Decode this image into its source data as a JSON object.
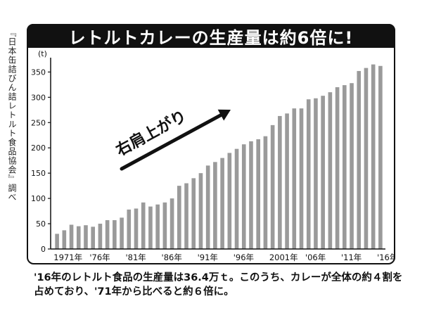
{
  "source_note": "『日本缶詰びん詰レトルト食品協会』調べ",
  "caption": "'16年のレトルト食品の生産量は36.4万ｔ。このうち、カレーが全体の約４割を占めており、'71年から比べると約６倍に。",
  "chart_data": {
    "type": "bar",
    "title": "レトルトカレーの生産量は約6倍に!",
    "unit_label": "(t)",
    "annotation": "右肩上がり",
    "ylim": [
      0,
      370
    ],
    "y_ticks": [
      0,
      50,
      100,
      150,
      200,
      250,
      300,
      350
    ],
    "x_tick_labels": [
      {
        "year": 1971,
        "label": "1971年"
      },
      {
        "year": 1976,
        "label": "'76年"
      },
      {
        "year": 1981,
        "label": "'81年"
      },
      {
        "year": 1986,
        "label": "'86年"
      },
      {
        "year": 1991,
        "label": "'91年"
      },
      {
        "year": 1996,
        "label": "'96年"
      },
      {
        "year": 2001,
        "label": "2001年"
      },
      {
        "year": 2006,
        "label": "'06年"
      },
      {
        "year": 2011,
        "label": "'11年"
      },
      {
        "year": 2016,
        "label": "'16年"
      }
    ],
    "x": [
      1971,
      1972,
      1973,
      1974,
      1975,
      1976,
      1977,
      1978,
      1979,
      1980,
      1981,
      1982,
      1983,
      1984,
      1985,
      1986,
      1987,
      1988,
      1989,
      1990,
      1991,
      1992,
      1993,
      1994,
      1995,
      1996,
      1997,
      1998,
      1999,
      2000,
      2001,
      2002,
      2003,
      2004,
      2005,
      2006,
      2007,
      2008,
      2009,
      2010,
      2011,
      2012,
      2013,
      2014,
      2015,
      2016
    ],
    "values": [
      30,
      37,
      48,
      45,
      47,
      44,
      50,
      57,
      57,
      62,
      78,
      80,
      92,
      84,
      88,
      92,
      100,
      125,
      130,
      140,
      150,
      165,
      172,
      180,
      190,
      198,
      207,
      213,
      217,
      223,
      245,
      263,
      268,
      278,
      278,
      296,
      298,
      303,
      310,
      320,
      324,
      328,
      352,
      358,
      365,
      362
    ],
    "colors": {
      "bar": "#9a9a9a",
      "axis": "#111111",
      "arrow": "#111111"
    }
  }
}
